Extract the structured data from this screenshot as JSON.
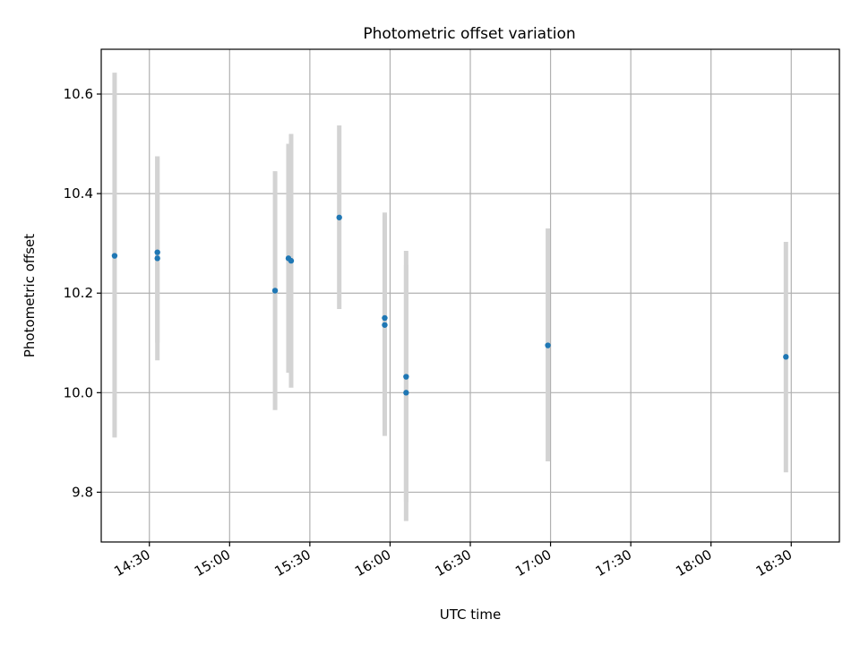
{
  "chart_data": {
    "type": "scatter",
    "title": "Photometric offset variation",
    "xlabel": "UTC time",
    "ylabel": "Photometric offset",
    "x_ticks": [
      "14:30",
      "15:00",
      "15:30",
      "16:00",
      "16:30",
      "17:00",
      "17:30",
      "18:00",
      "18:30"
    ],
    "y_ticks": [
      "9.8",
      "10.0",
      "10.2",
      "10.4",
      "10.6"
    ],
    "xlim": [
      "14:12",
      "18:48"
    ],
    "ylim": [
      9.7,
      10.69
    ],
    "grid": true,
    "points": [
      {
        "time": "14:17",
        "value": 10.275,
        "lo": 9.91,
        "hi": 10.643
      },
      {
        "time": "14:33",
        "value": 10.282,
        "lo": 10.1,
        "hi": 10.475
      },
      {
        "time": "14:33",
        "value": 10.27,
        "lo": 10.065,
        "hi": 10.475
      },
      {
        "time": "15:17",
        "value": 10.205,
        "lo": 9.965,
        "hi": 10.445
      },
      {
        "time": "15:22",
        "value": 10.27,
        "lo": 10.04,
        "hi": 10.5
      },
      {
        "time": "15:23",
        "value": 10.265,
        "lo": 10.01,
        "hi": 10.52
      },
      {
        "time": "15:41",
        "value": 10.352,
        "lo": 10.168,
        "hi": 10.537
      },
      {
        "time": "15:58",
        "value": 10.15,
        "lo": 9.945,
        "hi": 10.355
      },
      {
        "time": "15:58",
        "value": 10.136,
        "lo": 9.913,
        "hi": 10.362
      },
      {
        "time": "16:06",
        "value": 10.0,
        "lo": 9.742,
        "hi": 10.257
      },
      {
        "time": "16:06",
        "value": 10.032,
        "lo": 9.78,
        "hi": 10.285
      },
      {
        "time": "16:59",
        "value": 10.095,
        "lo": 9.862,
        "hi": 10.33
      },
      {
        "time": "18:28",
        "value": 10.072,
        "lo": 9.84,
        "hi": 10.303
      }
    ],
    "colors": {
      "marker": "#1f77b4",
      "errorbar": "#d3d3d3",
      "grid": "#b0b0b0"
    }
  }
}
